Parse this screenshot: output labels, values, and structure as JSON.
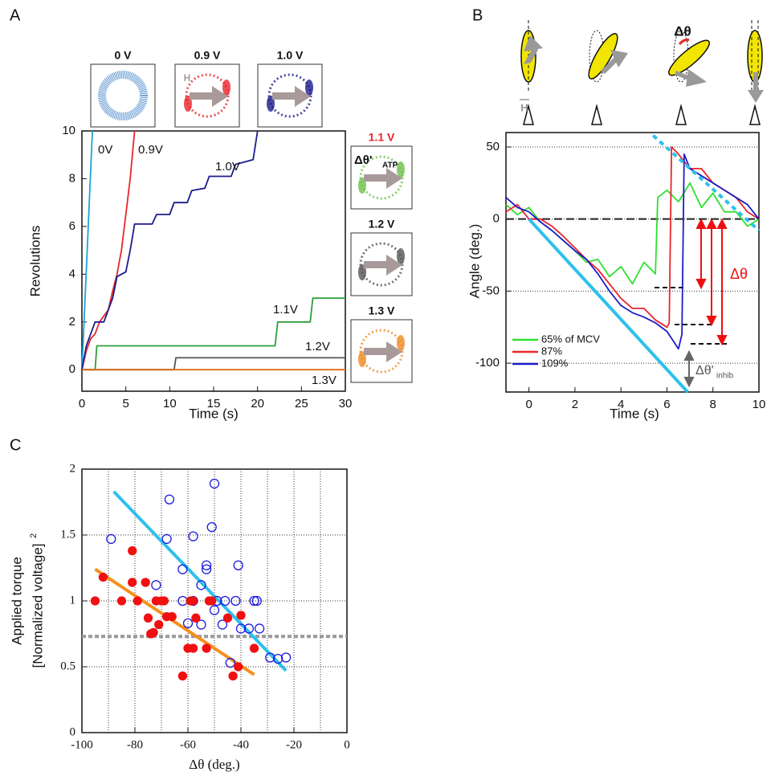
{
  "chart_data": [
    {
      "panel_label": "A",
      "type": "line",
      "xlabel": "Time (s)",
      "ylabel": "Revolutions",
      "xlim": [
        0,
        30
      ],
      "ylim": [
        -0.9,
        10
      ],
      "xticks": [
        0,
        5,
        10,
        15,
        20,
        25,
        30
      ],
      "yticks": [
        0,
        2,
        4,
        6,
        8,
        10
      ],
      "inset_titles": [
        "0 V",
        "0.9 V",
        "1.0 V",
        "1.1 V",
        "1.2 V",
        "1.3 V"
      ],
      "inset_colors": [
        "#3a7ec4",
        "#e8262a",
        "#1c1c8c",
        "#6cc24a",
        "#555555",
        "#f08a24"
      ],
      "field_symbol": "H",
      "inset_annotation": "Δθ'",
      "inset_annotation_sub": "ATP",
      "series": [
        {
          "name": "0V",
          "color": "#1aa3d6",
          "x": [
            0,
            0.3,
            0.6,
            0.9,
            1.2
          ],
          "values": [
            0,
            2.5,
            5,
            7.5,
            10
          ]
        },
        {
          "name": "0.9V",
          "color": "#e8262a",
          "x": [
            0,
            0.5,
            1,
            1.5,
            2,
            3,
            3.5,
            4,
            4.5,
            5,
            5.5,
            6
          ],
          "values": [
            0,
            0.8,
            1.3,
            1.5,
            2,
            2.5,
            3.3,
            4,
            5,
            6.5,
            8,
            10
          ]
        },
        {
          "name": "1.0V",
          "color": "#1c1c8c",
          "x": [
            0,
            0.5,
            1,
            1.5,
            2.5,
            3,
            3.5,
            4,
            5,
            5.5,
            6,
            8,
            8.5,
            10,
            10.5,
            12,
            12.5,
            14,
            14.5,
            17,
            17.5,
            19.5,
            20
          ],
          "values": [
            0,
            1,
            1.5,
            2,
            2,
            2.5,
            3,
            3.9,
            4.1,
            5,
            6.1,
            6.1,
            6.5,
            6.5,
            7,
            7,
            7.5,
            7.6,
            8.1,
            8.1,
            8.6,
            8.8,
            10
          ]
        },
        {
          "name": "1.1V",
          "color": "#2e9e3a",
          "x": [
            0,
            1.5,
            1.7,
            22,
            22.3,
            26,
            26.3,
            30
          ],
          "values": [
            0,
            0,
            1,
            1,
            2,
            2,
            3,
            3
          ]
        },
        {
          "name": "1.2V",
          "color": "#555555",
          "x": [
            0,
            10.5,
            10.7,
            30
          ],
          "values": [
            0,
            0,
            0.5,
            0.5
          ]
        },
        {
          "name": "1.3V",
          "color": "#e06a1a",
          "x": [
            0,
            30
          ],
          "values": [
            0,
            0
          ]
        }
      ]
    },
    {
      "panel_label": "B",
      "type": "line",
      "xlabel": "Time (s)",
      "ylabel": "Angle (deg.)",
      "xlim": [
        -1,
        10
      ],
      "ylim": [
        -120,
        60
      ],
      "xticks": [
        0,
        2,
        4,
        6,
        8,
        10
      ],
      "yticks": [
        -100,
        -50,
        0,
        50
      ],
      "grid": "y",
      "legend": "lower left",
      "reference_y": {
        "value": 0,
        "color": "#222222"
      },
      "field_symbol": "H",
      "cartoon_label": "Δθ",
      "delta_label": "Δθ",
      "inhib_label": "Δθ'",
      "inhib_sub": "inhib",
      "series": [
        {
          "name": "65% of MCV",
          "color": "#2ee02e",
          "x": [
            -1,
            -0.5,
            0,
            0.5,
            1,
            1.5,
            2,
            2.5,
            3,
            3.5,
            4,
            4.5,
            5,
            5.5,
            5.6,
            6,
            6.5,
            7,
            7.5,
            8,
            8.5,
            9,
            9.5,
            10
          ],
          "values": [
            10,
            3,
            8,
            -2,
            -8,
            -15,
            -22,
            -30,
            -28,
            -40,
            -33,
            -45,
            -30,
            -38,
            15,
            20,
            12,
            25,
            8,
            18,
            5,
            5,
            -5,
            0
          ]
        },
        {
          "name": "87%",
          "color": "#e8262a",
          "x": [
            -1,
            -0.5,
            0,
            0.5,
            1,
            1.5,
            2,
            2.5,
            3,
            3.5,
            4,
            4.5,
            5,
            5.5,
            6,
            6.1,
            6.2,
            6.5,
            7,
            7.5,
            8,
            8.5,
            9,
            9.5,
            10
          ],
          "values": [
            5,
            10,
            0,
            0,
            -5,
            -12,
            -20,
            -28,
            -35,
            -45,
            -55,
            -62,
            -62,
            -70,
            -75,
            -72,
            50,
            45,
            35,
            35,
            25,
            20,
            15,
            5,
            0
          ]
        },
        {
          "name": "109%",
          "color": "#1c1cc8",
          "x": [
            -1,
            -0.5,
            0,
            0.5,
            1,
            1.5,
            2,
            2.5,
            3,
            3.5,
            4,
            4.5,
            5,
            5.5,
            6,
            6.5,
            6.65,
            6.75,
            7,
            7.5,
            8,
            8.5,
            9,
            9.5,
            10
          ],
          "values": [
            15,
            8,
            5,
            -2,
            -8,
            -15,
            -22,
            -28,
            -38,
            -50,
            -60,
            -65,
            -68,
            -72,
            -78,
            -90,
            -80,
            45,
            35,
            30,
            25,
            20,
            15,
            10,
            0
          ]
        },
        {
          "color": "#2ec0ec",
          "width": 4,
          "x": [
            0,
            6.9
          ],
          "values": [
            0,
            -120
          ]
        },
        {
          "color": "#2ec0ec",
          "width": 4,
          "dashed": true,
          "x": [
            5.4,
            10
          ],
          "values": [
            58,
            -8
          ]
        }
      ]
    },
    {
      "panel_label": "C",
      "type": "scatter",
      "xlabel": "Δθ (deg.)",
      "ylabel": [
        "Applied torque",
        "[Normalized voltage]"
      ],
      "ylabel_sup": "2",
      "xlim": [
        -100,
        0
      ],
      "ylim": [
        0,
        2
      ],
      "xticks": [
        -100,
        -80,
        -60,
        -40,
        -20,
        0
      ],
      "yticks": [
        0,
        0.5,
        1,
        1.5,
        2
      ],
      "grid": "both",
      "xgrid": [
        -90,
        -80,
        -70,
        -60,
        -50,
        -40,
        -30,
        -20,
        -10
      ],
      "reference_y": {
        "value": 0.73,
        "color": "#999999"
      },
      "series": [
        {
          "color": "#1a1adf",
          "marker": "open",
          "x": [
            -89,
            -68,
            -67,
            -62,
            -58,
            -55,
            -53,
            -53,
            -51,
            -50,
            -41,
            -62,
            -60,
            -55,
            -49,
            -46,
            -42,
            -50,
            -47,
            -44,
            -40,
            -37,
            -35,
            -34,
            -33,
            -29,
            -26,
            -23,
            -72,
            -58
          ],
          "values": [
            1.47,
            1.47,
            1.77,
            1.24,
            1.49,
            1.12,
            1.24,
            1.27,
            1.56,
            1.89,
            1.27,
            1,
            0.83,
            0.82,
            1,
            1,
            1,
            0.93,
            0.82,
            0.53,
            0.79,
            0.79,
            1,
            1,
            0.79,
            0.57,
            0.56,
            0.57,
            1.12,
            1
          ]
        },
        {
          "color": "#f01010",
          "marker": "filled",
          "x": [
            -95,
            -92,
            -85,
            -81,
            -81,
            -79,
            -76,
            -75,
            -74,
            -73,
            -72,
            -71,
            -70,
            -69,
            -68,
            -66,
            -59,
            -58,
            -62,
            -60,
            -58,
            -57,
            -53,
            -52,
            -51,
            -45,
            -43,
            -41,
            -40,
            -35
          ],
          "values": [
            1,
            1.18,
            1,
            1.38,
            1.14,
            1,
            1.14,
            0.87,
            0.75,
            0.76,
            1,
            0.82,
            1,
            1,
            0.88,
            0.88,
            1,
            1,
            0.43,
            0.64,
            0.64,
            0.87,
            0.64,
            1,
            1,
            0.87,
            0.43,
            0.5,
            0.89,
            0.64
          ]
        }
      ],
      "fit_lines": [
        {
          "color": "#2ec0ec",
          "x": [
            -88,
            -23
          ],
          "values": [
            1.83,
            0.47
          ]
        },
        {
          "color": "#f5901e",
          "x": [
            -95,
            -35
          ],
          "values": [
            1.24,
            0.44
          ]
        }
      ]
    }
  ]
}
